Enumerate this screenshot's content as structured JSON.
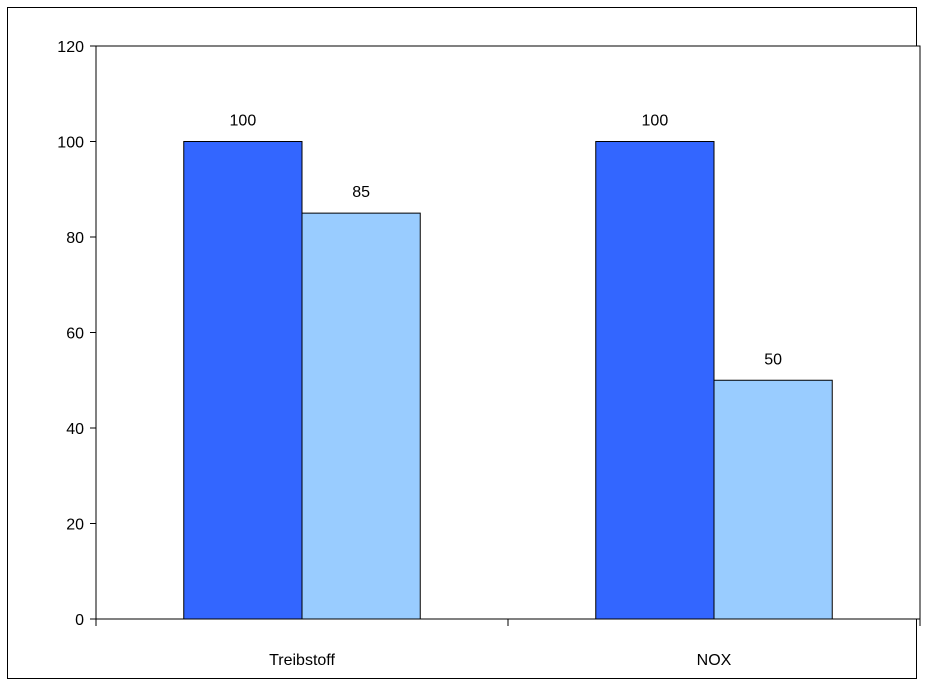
{
  "chart_data": {
    "type": "bar",
    "title": "",
    "xlabel": "",
    "ylabel": "",
    "categories": [
      "Treibstoff",
      "NOX"
    ],
    "series": [
      {
        "values": [
          100,
          100
        ],
        "color": "#3366FF"
      },
      {
        "values": [
          85,
          50
        ],
        "color": "#99CCFF"
      }
    ],
    "ylim": [
      0,
      120
    ],
    "y_ticks": [
      0,
      20,
      40,
      60,
      80,
      100,
      120
    ],
    "data_labels": true,
    "grid": false,
    "legend": "none",
    "plot_border": "top-right-bottom-left"
  }
}
